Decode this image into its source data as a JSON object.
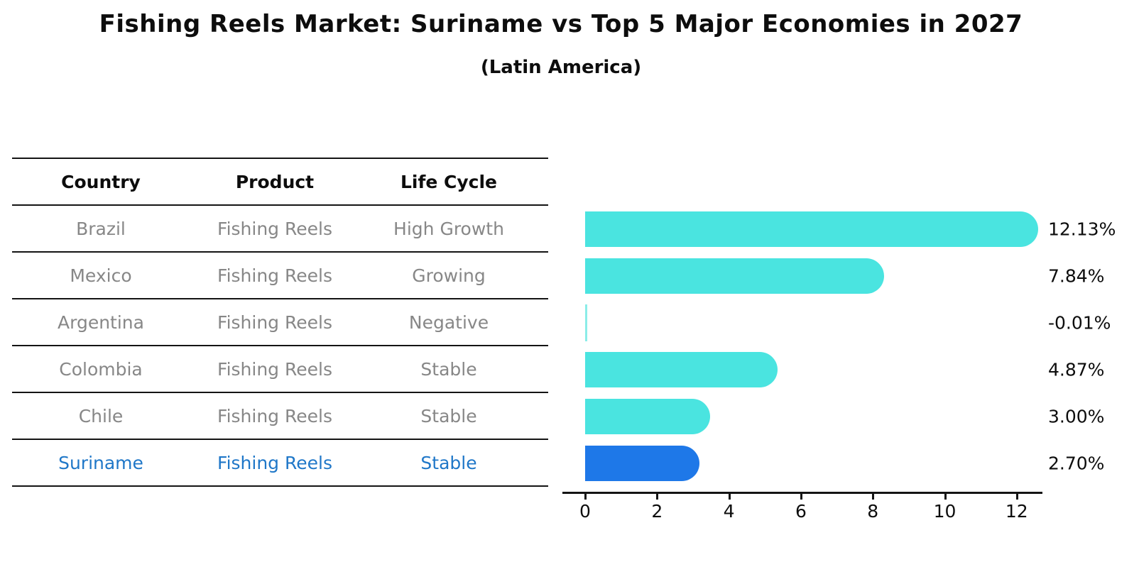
{
  "chart_data": {
    "type": "bar",
    "orientation": "horizontal",
    "title": "Fishing Reels Market: Suriname vs Top 5 Major Economies in 2027",
    "subtitle": "(Latin America)",
    "categories": [
      "Brazil",
      "Mexico",
      "Argentina",
      "Colombia",
      "Chile",
      "Suriname"
    ],
    "values": [
      12.13,
      7.84,
      -0.01,
      4.87,
      3.0,
      2.7
    ],
    "value_labels": [
      "12.13%",
      "7.84%",
      "-0.01%",
      "4.87%",
      "3.00%",
      "2.70%"
    ],
    "unit": "%",
    "xticks": [
      0,
      2,
      4,
      6,
      8,
      10,
      12
    ],
    "xlim": [
      -0.6,
      12.7
    ],
    "grid": false,
    "legend": false,
    "highlight_index": 5,
    "colors": {
      "default_bar": "#4AE4E0",
      "near_zero_bar": "#8BEDE8",
      "highlight_bar": "#1E78E8",
      "highlight_text": "#1F77C8",
      "axis": "#141414"
    }
  },
  "table": {
    "headers": [
      "Country",
      "Product",
      "Life Cycle"
    ],
    "rows": [
      {
        "country": "Brazil",
        "product": "Fishing Reels",
        "life_cycle": "High Growth",
        "highlight": false
      },
      {
        "country": "Mexico",
        "product": "Fishing Reels",
        "life_cycle": "Growing",
        "highlight": false
      },
      {
        "country": "Argentina",
        "product": "Fishing Reels",
        "life_cycle": "Negative",
        "highlight": false
      },
      {
        "country": "Colombia",
        "product": "Fishing Reels",
        "life_cycle": "Stable",
        "highlight": false
      },
      {
        "country": "Chile",
        "product": "Fishing Reels",
        "life_cycle": "Stable",
        "highlight": false
      },
      {
        "country": "Suriname",
        "product": "Fishing Reels",
        "life_cycle": "Stable",
        "highlight": true
      }
    ]
  }
}
